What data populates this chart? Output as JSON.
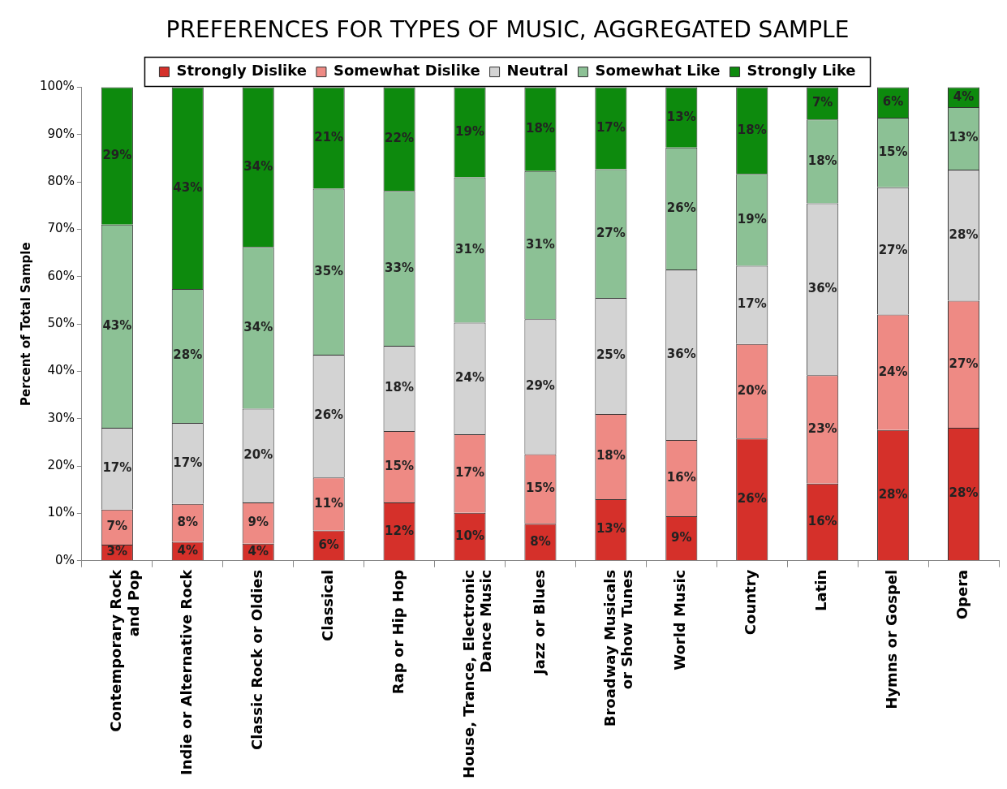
{
  "chart_data": {
    "type": "bar",
    "title": "PREFERENCES FOR TYPES OF MUSIC, AGGREGATED SAMPLE",
    "ylabel": "Percent of Total Sample",
    "categories": [
      "Contemporary Rock\nand Pop",
      "Indie or Alternative Rock",
      "Classic Rock or Oldies",
      "Classical",
      "Rap or Hip Hop",
      "House, Trance, Electronic\nDance Music",
      "Jazz or Blues",
      "Broadway Musicals\nor Show Tunes",
      "World Music",
      "Country",
      "Latin",
      "Hymns or Gospel",
      "Opera"
    ],
    "stacked": true,
    "legend": "top",
    "grid": false,
    "ylim": [
      0,
      100
    ],
    "yticks": [
      {
        "value": 0,
        "label": "0%"
      },
      {
        "value": 10,
        "label": "10%"
      },
      {
        "value": 20,
        "label": "20%"
      },
      {
        "value": 30,
        "label": "30%"
      },
      {
        "value": 40,
        "label": "40%"
      },
      {
        "value": 50,
        "label": "50%"
      },
      {
        "value": 60,
        "label": "60%"
      },
      {
        "value": 70,
        "label": "70%"
      },
      {
        "value": 80,
        "label": "80%"
      },
      {
        "value": 90,
        "label": "90%"
      },
      {
        "value": 100,
        "label": "100%"
      }
    ],
    "series": [
      {
        "name": "Strongly Dislike",
        "color": "#d5302a",
        "values": [
          3.4,
          4,
          3.6,
          6.4,
          12.3,
          10.1,
          7.8,
          13,
          9.4,
          25.8,
          16.3,
          27.6,
          28.1
        ],
        "value_labels": [
          "3%",
          "4%",
          "4%",
          "6%",
          "12%",
          "10%",
          "8%",
          "13%",
          "9%",
          "26%",
          "16%",
          "28%",
          "28%"
        ]
      },
      {
        "name": "Somewhat Dislike",
        "color": "#ee8a84",
        "values": [
          7.4,
          8,
          8.7,
          11.2,
          15.1,
          16.6,
          14.7,
          18,
          16.1,
          20,
          22.9,
          24.4,
          26.8
        ],
        "value_labels": [
          "7%",
          "8%",
          "9%",
          "11%",
          "15%",
          "17%",
          "15%",
          "18%",
          "16%",
          "20%",
          "23%",
          "24%",
          "27%"
        ]
      },
      {
        "name": "Neutral",
        "color": "#d3d3d3",
        "values": [
          17.3,
          17.1,
          19.8,
          25.9,
          18,
          23.6,
          28.5,
          24.5,
          36,
          16.5,
          36.3,
          26.9,
          27.7
        ],
        "value_labels": [
          "17%",
          "17%",
          "20%",
          "26%",
          "18%",
          "24%",
          "29%",
          "25%",
          "36%",
          "17%",
          "36%",
          "27%",
          "28%"
        ]
      },
      {
        "name": "Somewhat Like",
        "color": "#8cc195",
        "values": [
          42.9,
          28.3,
          34.2,
          35.1,
          32.7,
          30.7,
          31.3,
          27.2,
          25.8,
          19.4,
          17.7,
          14.7,
          13.2
        ],
        "value_labels": [
          "43%",
          "28%",
          "34%",
          "35%",
          "33%",
          "31%",
          "31%",
          "27%",
          "26%",
          "19%",
          "18%",
          "15%",
          "13%"
        ]
      },
      {
        "name": "Strongly Like",
        "color": "#0d8a0d",
        "values": [
          29,
          42.6,
          33.7,
          21.4,
          21.9,
          19,
          17.7,
          17.3,
          12.7,
          18.3,
          6.8,
          6.4,
          4.2
        ],
        "value_labels": [
          "29%",
          "43%",
          "34%",
          "21%",
          "22%",
          "19%",
          "18%",
          "17%",
          "13%",
          "18%",
          "7%",
          "6%",
          "4%"
        ]
      }
    ]
  }
}
